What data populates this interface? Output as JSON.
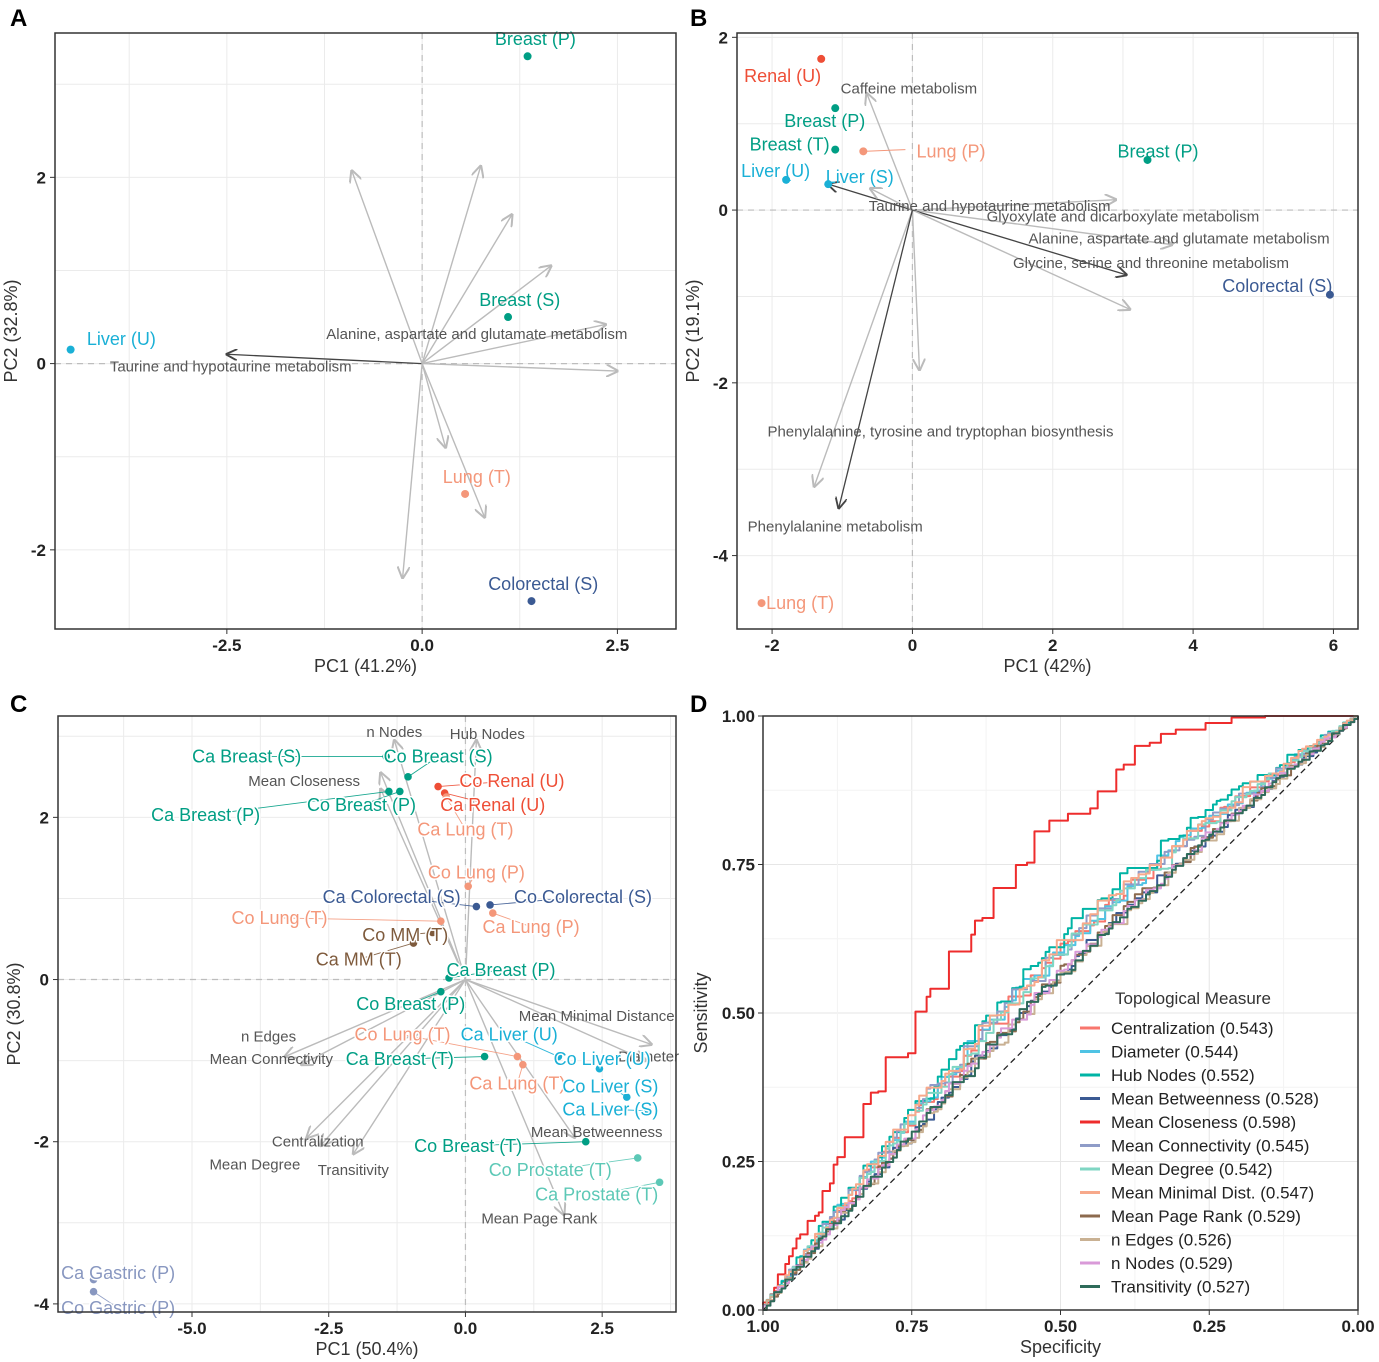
{
  "colors": {
    "Breast": "#009E84",
    "Liver": "#1AB0D6",
    "Lung": "#F4977A",
    "Colorectal": "#3B5A93",
    "Renal": "#EE4E36",
    "MM": "#7E5A3C",
    "Gastric": "#8897C0",
    "Prostate": "#5CC8B6",
    "arrow_light": "#BBBBBB",
    "arrow_dark": "#444444"
  },
  "chart_data": [
    {
      "panel": "A",
      "type": "scatter",
      "subtype": "pca-biplot",
      "xlabel": "PC1 (41.2%)",
      "ylabel": "PC2 (32.8%)",
      "xlim": [
        -4.7,
        3.25
      ],
      "ylim": [
        -2.85,
        3.55
      ],
      "xticks": [
        -2.5,
        0,
        2.5
      ],
      "xtick_labels": [
        "-2.5",
        "0.0",
        "2.5"
      ],
      "yticks": [
        -2,
        0,
        2
      ],
      "ytick_labels": [
        "-2",
        "0",
        "2"
      ],
      "points": [
        {
          "label": "Breast (P)",
          "x": 1.35,
          "y": 3.3,
          "group": "Breast"
        },
        {
          "label": "Breast (S)",
          "x": 1.1,
          "y": 0.5,
          "group": "Breast"
        },
        {
          "label": "Liver (U)",
          "x": -4.5,
          "y": 0.15,
          "group": "Liver"
        },
        {
          "label": "Lung (T)",
          "x": 0.55,
          "y": -1.4,
          "group": "Lung"
        },
        {
          "label": "Colorectal (S)",
          "x": 1.4,
          "y": -2.55,
          "group": "Colorectal"
        }
      ],
      "vectors": [
        {
          "x": -2.5,
          "y": 0.1,
          "label": "Taurine and hypotaurine metabolism",
          "dark": true
        },
        {
          "x": 2.35,
          "y": 0.42,
          "label": "Alanine, aspartate and glutamate metabolism",
          "dark": false
        },
        {
          "x": -0.9,
          "y": 2.07
        },
        {
          "x": 0.75,
          "y": 2.12
        },
        {
          "x": 1.15,
          "y": 1.6
        },
        {
          "x": 1.65,
          "y": 1.05
        },
        {
          "x": 2.5,
          "y": -0.08
        },
        {
          "x": 0.3,
          "y": -0.9
        },
        {
          "x": 0.8,
          "y": -1.65
        },
        {
          "x": -0.25,
          "y": -2.3
        }
      ]
    },
    {
      "panel": "B",
      "type": "scatter",
      "subtype": "pca-biplot",
      "xlabel": "PC1 (42%)",
      "ylabel": "PC2 (19.1%)",
      "xlim": [
        -2.5,
        6.35
      ],
      "ylim": [
        -4.85,
        2.05
      ],
      "xticks": [
        -2,
        0,
        2,
        4,
        6
      ],
      "xtick_labels": [
        "-2",
        "0",
        "2",
        "4",
        "6"
      ],
      "yticks": [
        -4,
        -2,
        0,
        2
      ],
      "ytick_labels": [
        "-4",
        "-2",
        "0",
        "2"
      ],
      "points": [
        {
          "label": "Renal (U)",
          "x": -1.3,
          "y": 1.75,
          "group": "Renal"
        },
        {
          "label": "Breast (P)",
          "x": -1.1,
          "y": 1.18,
          "group": "Breast"
        },
        {
          "label": "Breast (T)",
          "x": -1.1,
          "y": 0.7,
          "group": "Breast"
        },
        {
          "label": "Lung (P)",
          "x": -0.7,
          "y": 0.68,
          "group": "Lung"
        },
        {
          "label": "Liver (U)",
          "x": -1.8,
          "y": 0.35,
          "group": "Liver"
        },
        {
          "label": "Liver (S)",
          "x": -1.2,
          "y": 0.3,
          "group": "Liver"
        },
        {
          "label": "Breast (P)",
          "x": 3.35,
          "y": 0.58,
          "group": "Breast"
        },
        {
          "label": "Colorectal (S)",
          "x": 5.95,
          "y": -0.98,
          "group": "Colorectal"
        },
        {
          "label": "Lung (T)",
          "x": -2.15,
          "y": -4.55,
          "group": "Lung"
        }
      ],
      "vectors": [
        {
          "x": -0.65,
          "y": 1.35,
          "label": "Caffeine metabolism",
          "dark": false
        },
        {
          "x": -1.2,
          "y": 0.3,
          "label": "Taurine and hypotaurine metabolism",
          "dark": true
        },
        {
          "x": -0.6,
          "y": 0.25
        },
        {
          "x": 2.9,
          "y": 0.12,
          "label": "Glyoxylate and dicarboxylate metabolism",
          "dark": false
        },
        {
          "x": 3.7,
          "y": -0.4,
          "label": "Alanine, aspartate and glutamate metabolism",
          "dark": false
        },
        {
          "x": 3.05,
          "y": -0.75,
          "label": "Glycine, serine and threonine metabolism",
          "dark": true
        },
        {
          "x": 3.1,
          "y": -1.15
        },
        {
          "x": 0.1,
          "y": -1.85
        },
        {
          "x": -1.4,
          "y": -3.2,
          "label": "Phenylalanine, tyrosine and tryptophan biosynthesis",
          "dark": false
        },
        {
          "x": -1.05,
          "y": -3.45,
          "label": "Phenylalanine metabolism",
          "dark": true
        }
      ]
    },
    {
      "panel": "C",
      "type": "scatter",
      "subtype": "pca-biplot",
      "xlabel": "PC1 (50.4%)",
      "ylabel": "PC2 (30.8%)",
      "xlim": [
        -7.45,
        3.85
      ],
      "ylim": [
        -4.1,
        3.25
      ],
      "xticks": [
        -5,
        -2.5,
        0,
        2.5
      ],
      "xtick_labels": [
        "-5.0",
        "-2.5",
        "0.0",
        "2.5"
      ],
      "yticks": [
        -4,
        -2,
        0,
        2
      ],
      "ytick_labels": [
        "-4",
        "-2",
        "0",
        "2"
      ],
      "points": [
        {
          "label": "Ca Breast (S)",
          "x": -1.45,
          "y": 2.75,
          "group": "Breast",
          "lx": -4.0,
          "ly": 2.75
        },
        {
          "label": "Co Breast (S)",
          "x": -1.05,
          "y": 2.5,
          "group": "Breast",
          "lx": -0.5,
          "ly": 2.75
        },
        {
          "label": "Ca Breast (P)",
          "x": -1.4,
          "y": 2.32,
          "group": "Breast",
          "lx": -4.75,
          "ly": 2.03
        },
        {
          "label": "Co Breast (P)",
          "x": -1.2,
          "y": 2.32,
          "group": "Breast",
          "lx": -1.9,
          "ly": 2.15
        },
        {
          "label": "Co Renal (U)",
          "x": -0.5,
          "y": 2.38,
          "group": "Renal",
          "lx": 0.85,
          "ly": 2.45
        },
        {
          "label": "Ca Renal (U)",
          "x": -0.38,
          "y": 2.3,
          "group": "Renal",
          "lx": 0.5,
          "ly": 2.15
        },
        {
          "label": "Ca Lung (T)",
          "x": -0.35,
          "y": 2.25,
          "group": "Lung",
          "lx": 0.0,
          "ly": 1.85
        },
        {
          "label": "Co Lung (P)",
          "x": 0.05,
          "y": 1.15,
          "group": "Lung",
          "lx": 0.2,
          "ly": 1.32
        },
        {
          "label": "Ca Colorectal (S)",
          "x": 0.2,
          "y": 0.9,
          "group": "Colorectal",
          "lx": -1.35,
          "ly": 1.02
        },
        {
          "label": "Co Colorectal (S)",
          "x": 0.45,
          "y": 0.92,
          "group": "Colorectal",
          "lx": 2.15,
          "ly": 1.02
        },
        {
          "label": "Ca Lung (P)",
          "x": 0.5,
          "y": 0.82,
          "group": "Lung",
          "lx": 1.2,
          "ly": 0.65
        },
        {
          "label": "Co Lung (T)",
          "x": -0.45,
          "y": 0.72,
          "group": "Lung",
          "lx": -3.4,
          "ly": 0.76
        },
        {
          "label": "Co MM (T)",
          "x": -0.6,
          "y": 0.58,
          "group": "MM",
          "lx": -1.1,
          "ly": 0.55
        },
        {
          "label": "Ca MM (T)",
          "x": -0.95,
          "y": 0.45,
          "group": "MM",
          "lx": -1.95,
          "ly": 0.25
        },
        {
          "label": "Ca Breast (P)",
          "x": -0.3,
          "y": 0.02,
          "group": "Breast",
          "lx": 0.65,
          "ly": 0.12
        },
        {
          "label": "Co Breast (P)",
          "x": -0.45,
          "y": -0.15,
          "group": "Breast",
          "lx": -1.0,
          "ly": -0.3
        },
        {
          "label": "Co Lung (T)",
          "x": 0.95,
          "y": -0.95,
          "group": "Lung",
          "lx": -1.15,
          "ly": -0.68
        },
        {
          "label": "Ca Liver (U)",
          "x": 1.7,
          "y": -0.95,
          "group": "Liver",
          "lx": 0.8,
          "ly": -0.68
        },
        {
          "label": "Ca Breast (T)",
          "x": 0.35,
          "y": -0.95,
          "group": "Breast",
          "lx": -1.2,
          "ly": -0.98
        },
        {
          "label": "Co Liver (U)",
          "x": 2.45,
          "y": -1.1,
          "group": "Liver",
          "lx": 2.5,
          "ly": -0.98
        },
        {
          "label": "Ca Lung (T)",
          "x": 1.05,
          "y": -1.05,
          "group": "Lung",
          "lx": 0.95,
          "ly": -1.28
        },
        {
          "label": "Co Liver (S)",
          "x": 2.95,
          "y": -1.45,
          "group": "Liver",
          "lx": 2.65,
          "ly": -1.32
        },
        {
          "label": "Ca Liver (S)",
          "x": 3.35,
          "y": -1.62,
          "group": "Liver",
          "lx": 2.65,
          "ly": -1.6
        },
        {
          "label": "Co Breast (T)",
          "x": 2.2,
          "y": -2.0,
          "group": "Breast",
          "lx": 0.05,
          "ly": -2.05
        },
        {
          "label": "Co Prostate (T)",
          "x": 3.15,
          "y": -2.2,
          "group": "Prostate",
          "lx": 1.55,
          "ly": -2.35
        },
        {
          "label": "Ca Prostate (T)",
          "x": 3.55,
          "y": -2.5,
          "group": "Prostate",
          "lx": 2.4,
          "ly": -2.65
        },
        {
          "label": "Ca Gastric (P)",
          "x": -6.8,
          "y": -3.7,
          "group": "Gastric",
          "lx": -6.35,
          "ly": -3.62
        },
        {
          "label": "Co Gastric (P)",
          "x": -6.8,
          "y": -3.85,
          "group": "Gastric",
          "lx": -6.35,
          "ly": -4.05
        }
      ],
      "vectors": [
        {
          "x": -1.3,
          "y": 2.95,
          "label": "n Nodes"
        },
        {
          "x": 0.2,
          "y": 2.95,
          "label": "Hub Nodes"
        },
        {
          "x": -1.55,
          "y": 2.55,
          "label": "Mean Closeness"
        },
        {
          "x": -1.55,
          "y": 2.35
        },
        {
          "x": 3.4,
          "y": -0.8,
          "label": "Mean Minimal Distance"
        },
        {
          "x": -3.3,
          "y": -0.95,
          "label": "n Edges"
        },
        {
          "x": -3.0,
          "y": -1.05,
          "label": "Mean Connectivity"
        },
        {
          "x": 3.3,
          "y": -1.0,
          "label": "Diameter"
        },
        {
          "x": -2.9,
          "y": -1.95,
          "label": "Centralization"
        },
        {
          "x": -2.65,
          "y": -2.05,
          "label": "Mean Degree"
        },
        {
          "x": -2.05,
          "y": -2.15,
          "label": "Transitivity"
        },
        {
          "x": 2.0,
          "y": -1.95,
          "label": "Mean Betweenness"
        },
        {
          "x": 1.8,
          "y": -2.9,
          "label": "Mean Page Rank"
        }
      ]
    },
    {
      "panel": "D",
      "type": "line",
      "subtype": "roc",
      "xlabel": "Specificity",
      "ylabel": "Sensitivity",
      "xlim": [
        1.0,
        0.0
      ],
      "ylim": [
        0.0,
        1.0
      ],
      "xtick_labels": [
        "1.00",
        "0.75",
        "0.50",
        "0.25",
        "0.00"
      ],
      "ytick_labels": [
        "0.00",
        "0.25",
        "0.50",
        "0.75",
        "1.00"
      ],
      "legend_title": "Topological Measure",
      "legend_position": "bottom-right",
      "series": [
        {
          "name": "Centralization (0.543)",
          "auc": 0.543,
          "color": "#F8766D"
        },
        {
          "name": "Diameter (0.544)",
          "auc": 0.544,
          "color": "#4FC3E4"
        },
        {
          "name": "Hub Nodes (0.552)",
          "auc": 0.552,
          "color": "#00B4A5"
        },
        {
          "name": "Mean Betweenness (0.528)",
          "auc": 0.528,
          "color": "#3B5A93"
        },
        {
          "name": "Mean Closeness (0.598)",
          "auc": 0.598,
          "color": "#EE2C2C"
        },
        {
          "name": "Mean Connectivity (0.545)",
          "auc": 0.545,
          "color": "#8F9CC8"
        },
        {
          "name": "Mean Degree (0.542)",
          "auc": 0.542,
          "color": "#7FD6C3"
        },
        {
          "name": "Mean Minimal Dist. (0.547)",
          "auc": 0.547,
          "color": "#F7A98B"
        },
        {
          "name": "Mean Page Rank (0.529)",
          "auc": 0.529,
          "color": "#8C6A4E"
        },
        {
          "name": "n Edges (0.526)",
          "auc": 0.526,
          "color": "#C9B193"
        },
        {
          "name": "n Nodes (0.529)",
          "auc": 0.529,
          "color": "#D99AD8"
        },
        {
          "name": "Transitivity (0.527)",
          "auc": 0.527,
          "color": "#2E6B5A"
        }
      ]
    }
  ]
}
